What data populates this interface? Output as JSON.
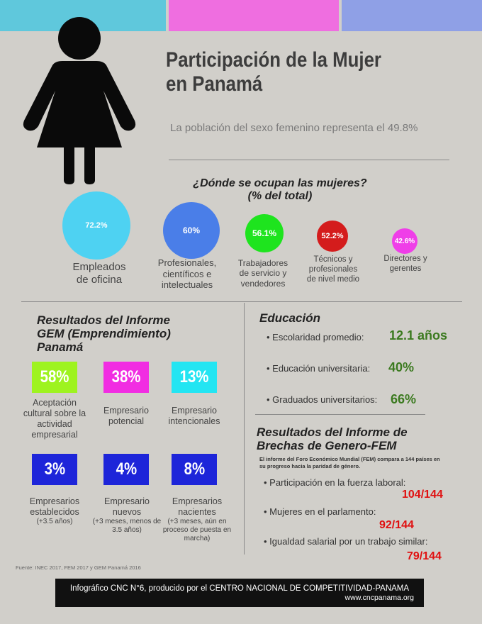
{
  "header": {
    "title_line1": "Participación de la Mujer",
    "title_line2": "en Panamá",
    "subtitle": "La población del sexo femenino representa el 49.8%",
    "colors": [
      "#5fc8dc",
      "#ef6ee0",
      "#8fa0e6"
    ]
  },
  "occupations": {
    "title_line1": "¿Dónde se ocupan las mujeres?",
    "title_line2": "(% del total)",
    "items": [
      {
        "value": "72.2%",
        "label": "Empleados de oficina",
        "color": "#4ed2f2"
      },
      {
        "value": "60%",
        "label": "Profesionales, científicos e intelectuales",
        "color": "#4a7ee8"
      },
      {
        "value": "56.1%",
        "label": "Trabajadores de servicio y vendedores",
        "color": "#1ee41e"
      },
      {
        "value": "52.2%",
        "label": "Técnicos y profesionales de nivel medio",
        "color": "#d41c1c"
      },
      {
        "value": "42.6%",
        "label": "Directores y gerentes",
        "color": "#ef3ee8"
      }
    ]
  },
  "gem": {
    "title_line1": "Resultados del Informe",
    "title_line2": "GEM (Emprendimiento)",
    "title_line3": "Panamá",
    "items": [
      {
        "value": "58%",
        "label": "Aceptación cultural sobre la actividad empresarial",
        "sub": "",
        "color": "#9ef31f"
      },
      {
        "value": "38%",
        "label": "Empresario potencial",
        "sub": "",
        "color": "#f12de2"
      },
      {
        "value": "13%",
        "label": "Empresario intencionales",
        "sub": "",
        "color": "#23e5f2"
      },
      {
        "value": "3%",
        "label": "Empresarios establecidos",
        "sub": "(+3.5 años)",
        "color": "#1d25d9"
      },
      {
        "value": "4%",
        "label": "Empresario nuevos",
        "sub": "(+3 meses, menos de 3.5 años)",
        "color": "#1d25d9"
      },
      {
        "value": "8%",
        "label": "Empresarios nacientes",
        "sub": "(+3 meses, aún en proceso de puesta en marcha)",
        "color": "#1d25d9"
      }
    ]
  },
  "education": {
    "title": "Educación",
    "items": [
      {
        "label": "• Escolaridad promedio:",
        "value": "12.1 años"
      },
      {
        "label": "• Educación universitaria:",
        "value": "40%"
      },
      {
        "label": "• Graduados universitarios:",
        "value": "66%"
      }
    ]
  },
  "fem": {
    "title_line1": "Resultados  del Informe de",
    "title_line2": "Brechas de Genero-FEM",
    "note": "El informe  del Foro Económico Mundial (FEM) compara a 144 países en su progreso hacia la paridad de género.",
    "items": [
      {
        "label": "• Participación en la fuerza laboral:",
        "value": "104/144"
      },
      {
        "label": "• Mujeres en el parlamento:",
        "value": "92/144"
      },
      {
        "label": "• Igualdad salarial por un trabajo similar:",
        "value": "79/144"
      }
    ]
  },
  "source": "Fuente: INEC 2017, FEM 2017 y GEM Panamá 2016",
  "footer": {
    "line1": "Infográfico CNC N°6, producido por el CENTRO NACIONAL DE COMPETITIVIDAD-PANAMA",
    "url": "www.cncpanama.org"
  }
}
